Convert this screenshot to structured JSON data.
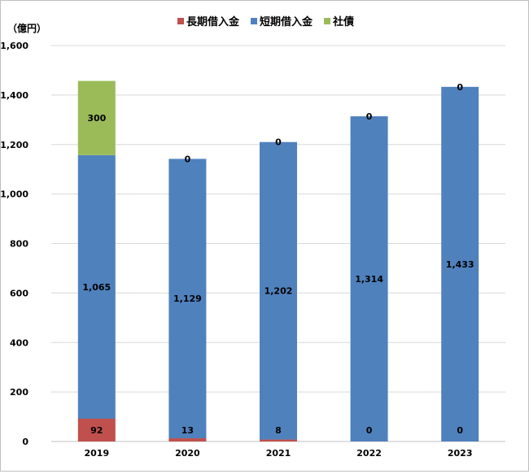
{
  "chart_data": {
    "type": "bar",
    "stacked": true,
    "unit_label": "（億円）",
    "categories": [
      "2019",
      "2020",
      "2021",
      "2022",
      "2023"
    ],
    "series": [
      {
        "name": "長期借入金",
        "color": "#c0504d",
        "values": [
          92,
          13,
          8,
          0,
          0
        ]
      },
      {
        "name": "短期借入金",
        "color": "#4f81bd",
        "values": [
          1065,
          1129,
          1202,
          1314,
          1433
        ]
      },
      {
        "name": "社債",
        "color": "#9bbb59",
        "values": [
          300,
          0,
          0,
          0,
          0
        ]
      }
    ],
    "data_labels": [
      [
        "92",
        "13",
        "8",
        "0",
        "0"
      ],
      [
        "1,065",
        "1,129",
        "1,202",
        "1,314",
        "1,433"
      ],
      [
        "300",
        "0",
        "0",
        "0",
        "0"
      ]
    ],
    "y_ticks": [
      0,
      200,
      400,
      600,
      800,
      1000,
      1200,
      1400,
      1600
    ],
    "y_tick_labels": [
      "0",
      "200",
      "400",
      "600",
      "800",
      "1,000",
      "1,200",
      "1,400",
      "1,600"
    ],
    "ylim": [
      0,
      1600
    ],
    "grid": true,
    "legend_position": "top-center"
  }
}
